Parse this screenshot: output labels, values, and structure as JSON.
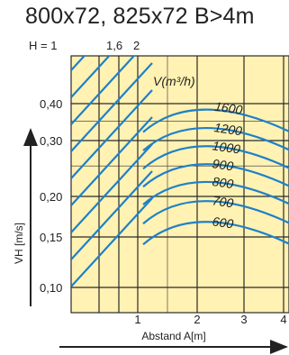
{
  "title": "800x72, 825x72 B>4m",
  "colors": {
    "plot_bg": "#fff2b3",
    "grid": "#2a2a2a",
    "curve": "#1e80c8"
  },
  "chart_data": {
    "type": "line",
    "title": "800x72, 825x72 B>4m",
    "xlabel": "Abstand A[m]",
    "ylabel": "VH [m/s]",
    "x_ticks": [
      "1",
      "2",
      "3",
      "4"
    ],
    "y_ticks": [
      "0,10",
      "0,15",
      "0,20",
      "0,30",
      "0,40"
    ],
    "h_labels": [
      "H = 1",
      "1,6",
      "2"
    ],
    "flow_header": "V(m³/h)",
    "flow_series": [
      {
        "name": "1600",
        "apex": 0.385
      },
      {
        "name": "1200",
        "apex": 0.335
      },
      {
        "name": "1000",
        "apex": 0.292
      },
      {
        "name": "900",
        "apex": 0.255
      },
      {
        "name": "800",
        "apex": 0.223
      },
      {
        "name": "700",
        "apex": 0.193
      },
      {
        "name": "600",
        "apex": 0.165
      }
    ]
  }
}
